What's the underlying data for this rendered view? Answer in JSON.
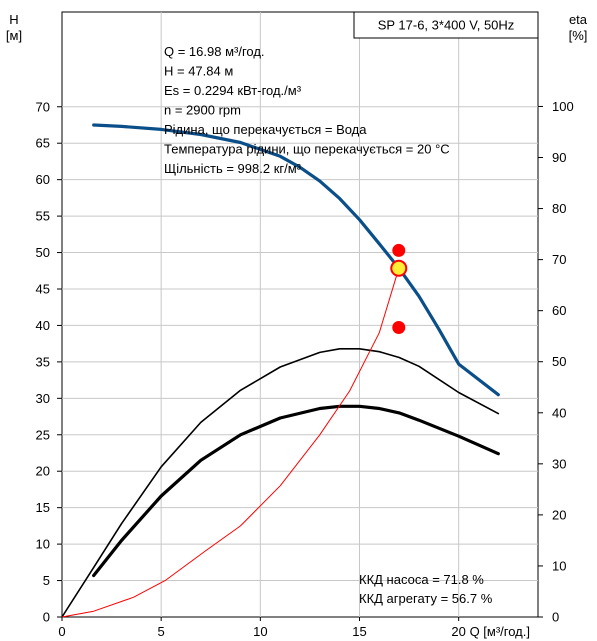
{
  "chart_data": {
    "type": "line",
    "title": "SP 17-6, 3*400 V, 50Hz",
    "xlabel": "Q [м³/год.]",
    "ylabel_left": "H",
    "ylabel_left_unit": "[м]",
    "ylabel_right": "eta",
    "ylabel_right_unit": "[%]",
    "xlim": [
      0,
      24
    ],
    "ylim_left": [
      0,
      83
    ],
    "ylim_right": [
      0,
      118.5
    ],
    "x_ticks": [
      0,
      5,
      10,
      15,
      20
    ],
    "y_left_ticks": [
      0,
      5,
      10,
      15,
      20,
      25,
      30,
      35,
      40,
      45,
      50,
      55,
      60,
      65,
      70
    ],
    "y_right_ticks": [
      0,
      10,
      20,
      30,
      40,
      50,
      60,
      70,
      80,
      90,
      100
    ],
    "grid": true,
    "series": [
      {
        "axis": "left",
        "color": "#0a4f8a",
        "points": [
          [
            1.6,
            67.5
          ],
          [
            3,
            67.3
          ],
          [
            5,
            66.9
          ],
          [
            7,
            66.2
          ],
          [
            9,
            65.1
          ],
          [
            11,
            63.2
          ],
          [
            12,
            61.7
          ],
          [
            13,
            59.8
          ],
          [
            14,
            57.4
          ],
          [
            15,
            54.5
          ],
          [
            16,
            51.2
          ],
          [
            17,
            47.8
          ],
          [
            18,
            44
          ],
          [
            19,
            39.5
          ],
          [
            20,
            34.7
          ],
          [
            22,
            30.5
          ]
        ]
      },
      {
        "axis": "left",
        "color": "#000000",
        "points": [
          [
            0,
            0
          ],
          [
            1.6,
            6.8
          ],
          [
            3,
            12.8
          ],
          [
            5,
            20.6
          ],
          [
            7,
            26.7
          ],
          [
            9,
            31.1
          ],
          [
            11,
            34.3
          ],
          [
            13,
            36.3
          ],
          [
            14,
            36.8
          ],
          [
            15,
            36.8
          ],
          [
            16,
            36.4
          ],
          [
            17,
            35.6
          ],
          [
            18,
            34.4
          ],
          [
            20,
            30.8
          ],
          [
            22,
            27.9
          ]
        ]
      },
      {
        "axis": "left",
        "color": "#000000",
        "points": [
          [
            1.6,
            5.7
          ],
          [
            3,
            10.5
          ],
          [
            5,
            16.6
          ],
          [
            7,
            21.5
          ],
          [
            9,
            25
          ],
          [
            11,
            27.3
          ],
          [
            13,
            28.6
          ],
          [
            14,
            28.9
          ],
          [
            15,
            28.9
          ],
          [
            16,
            28.6
          ],
          [
            17,
            28
          ],
          [
            18,
            27
          ],
          [
            20,
            24.8
          ],
          [
            22,
            22.4
          ]
        ]
      },
      {
        "axis": "left",
        "color": "#ff0000",
        "points": [
          [
            0,
            0
          ],
          [
            1.6,
            0.8
          ],
          [
            3.6,
            2.7
          ],
          [
            5.2,
            5
          ],
          [
            7.2,
            9
          ],
          [
            9,
            12.5
          ],
          [
            11,
            18
          ],
          [
            13,
            25
          ],
          [
            14.5,
            31
          ],
          [
            16,
            39
          ],
          [
            16.98,
            47.84
          ]
        ]
      }
    ],
    "operating_point": {
      "q": 16.98,
      "h": 47.84
    },
    "markers": [
      {
        "q": 16.98,
        "value": 71.8,
        "axis": "right",
        "color": "#ff0000"
      },
      {
        "q": 16.98,
        "value": 56.7,
        "axis": "right",
        "color": "#ff0000"
      }
    ],
    "info_lines": [
      "Q = 16.98 м³/год.",
      "H = 47.84 м",
      "Es = 0.2294 кВт-год./м³",
      "n = 2900 rpm",
      "Рідина, що перекачується = Вода",
      "Температура рідини, що перекачується = 20 °C",
      "Щільність = 998.2 кг/м³"
    ],
    "efficiency_lines": [
      "ККД насоса = 71.8 %",
      "ККД агрегату = 56.7 %"
    ]
  }
}
